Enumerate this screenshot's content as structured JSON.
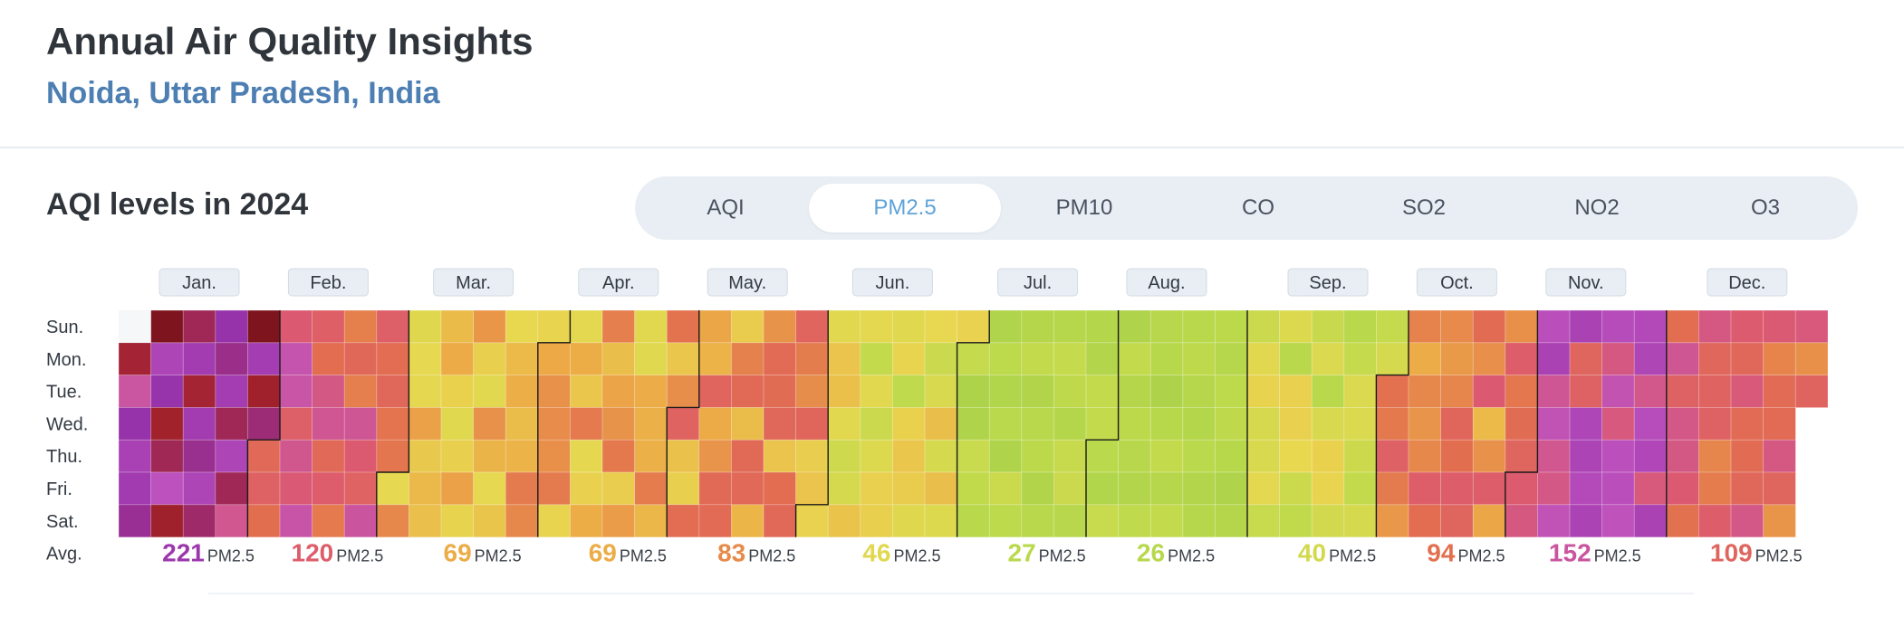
{
  "header": {
    "title": "Annual Air Quality Insights",
    "subtitle": "Noida, Uttar Pradesh, India"
  },
  "section": {
    "title": "AQI levels in 2024"
  },
  "tabs": [
    {
      "label": "AQI",
      "active": false
    },
    {
      "label": "PM2.5",
      "active": true
    },
    {
      "label": "PM10",
      "active": false
    },
    {
      "label": "CO",
      "active": false
    },
    {
      "label": "SO2",
      "active": false
    },
    {
      "label": "NO2",
      "active": false
    },
    {
      "label": "O3",
      "active": false
    }
  ],
  "colors": {
    "good": "#a3cf4a",
    "moderate": "#e8d24e",
    "poor": "#e9a043",
    "unhealthy": "#de5a70",
    "severe": "#b356c6",
    "hazardous": "#7a1a22",
    "tab_active_text": "#5ea3d9",
    "subtitle": "#4d7fb3"
  },
  "chart_data": {
    "type": "heatmap",
    "title": "AQI levels in 2024",
    "metric": "PM2.5",
    "days": [
      "Sun.",
      "Mon.",
      "Tue.",
      "Wed.",
      "Thu.",
      "Fri.",
      "Sat."
    ],
    "avg_row_label": "Avg.",
    "unit": "PM2.5",
    "months": [
      {
        "label": "Jan.",
        "avg": 221
      },
      {
        "label": "Feb.",
        "avg": 120
      },
      {
        "label": "Mar.",
        "avg": 69
      },
      {
        "label": "Apr.",
        "avg": 69
      },
      {
        "label": "May.",
        "avg": 83
      },
      {
        "label": "Jun.",
        "avg": 46
      },
      {
        "label": "Jul.",
        "avg": 27
      },
      {
        "label": "Aug.",
        "avg": 26
      },
      {
        "label": "Sep.",
        "avg": 40
      },
      {
        "label": "Oct.",
        "avg": 94
      },
      {
        "label": "Nov.",
        "avg": 152
      },
      {
        "label": "Dec.",
        "avg": 109
      }
    ],
    "year": 2024
  }
}
